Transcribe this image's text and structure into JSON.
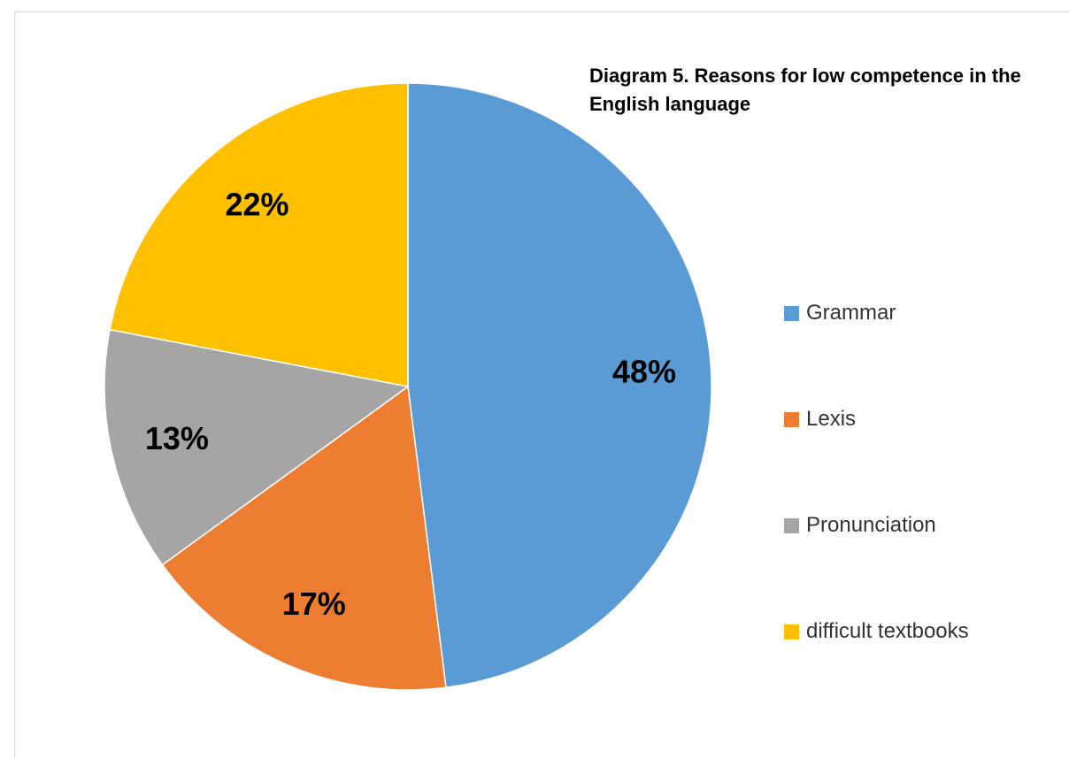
{
  "chart_data": {
    "type": "pie",
    "title": "Diagram 5. Reasons for low competence in the English language",
    "categories": [
      "Grammar",
      "Lexis",
      "Pronunciation",
      "difficult textbooks"
    ],
    "values": [
      48,
      17,
      13,
      22
    ],
    "data_labels": [
      "48%",
      "17%",
      "13%",
      "22%"
    ],
    "colors": [
      "#5B9BD5",
      "#ED7D31",
      "#A5A5A5",
      "#FFC000"
    ],
    "start_angle": "12 o'clock",
    "direction": "clockwise",
    "legend": "right",
    "grid": false
  }
}
